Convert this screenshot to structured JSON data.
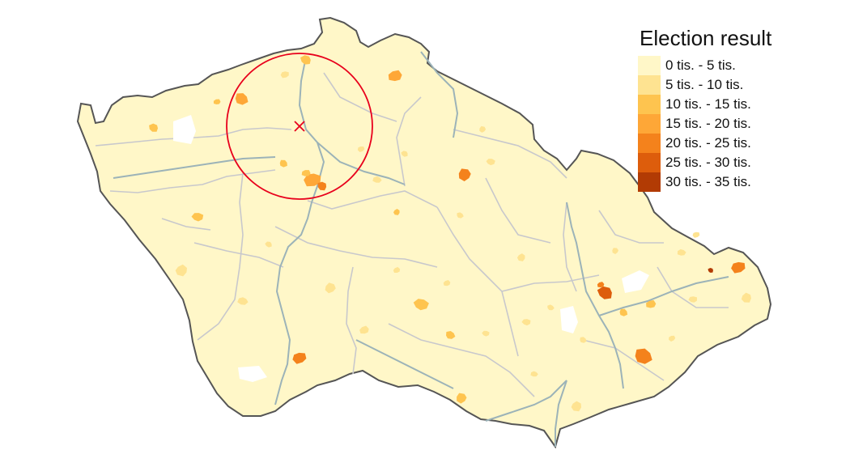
{
  "map": {
    "region": "Czech Republic",
    "marker": {
      "shape": "x",
      "color": "#e8001c"
    },
    "highlight_circle": {
      "stroke": "#e8001c"
    },
    "colors": {
      "land": "#fff7c8",
      "border": "#555555",
      "region_border": "#c8c8cc",
      "river": "#9cb3b8",
      "no_data": "#ffffff"
    }
  },
  "legend": {
    "title": "Election result",
    "items": [
      {
        "label": "0 tis. - 5 tis.",
        "color": "#fff7c8"
      },
      {
        "label": "5 tis. - 10 tis.",
        "color": "#fee391"
      },
      {
        "label": "10 tis. - 15 tis.",
        "color": "#fec44f"
      },
      {
        "label": "15 tis. - 20 tis.",
        "color": "#fea737"
      },
      {
        "label": "20 tis. - 25 tis.",
        "color": "#f4821c"
      },
      {
        "label": "25 tis. - 30 tis.",
        "color": "#dd5d0c"
      },
      {
        "label": "30 tis. - 35 tis.",
        "color": "#b23b04"
      }
    ]
  }
}
